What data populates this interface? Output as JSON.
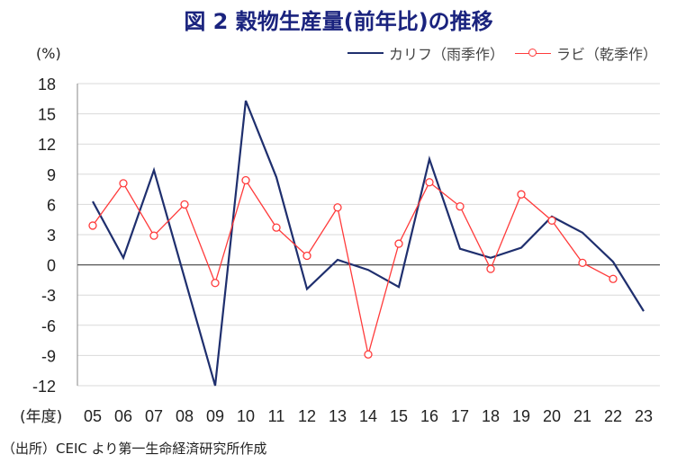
{
  "title": "図 2  穀物生産量(前年比)の推移",
  "source": "（出所）CEIC より第一生命経済研究所作成",
  "chart_data": {
    "type": "line",
    "ylabel": "(%)",
    "xlabel": "(年度)",
    "categories": [
      "05",
      "06",
      "07",
      "08",
      "09",
      "10",
      "11",
      "12",
      "13",
      "14",
      "15",
      "16",
      "17",
      "18",
      "19",
      "20",
      "21",
      "22",
      "23"
    ],
    "ylim": [
      -12,
      18
    ],
    "yticks": [
      18,
      15,
      12,
      9,
      6,
      3,
      0,
      -3,
      -6,
      -9,
      -12
    ],
    "grid": true,
    "legend_position": "top-right",
    "series": [
      {
        "name": "カリフ（雨季作）",
        "color": "#1f2f6e",
        "marker": "none",
        "values": [
          6.3,
          0.7,
          9.4,
          -1.3,
          -12.0,
          16.3,
          8.7,
          -2.4,
          0.5,
          -0.5,
          -2.2,
          10.5,
          1.6,
          0.7,
          1.7,
          4.8,
          3.2,
          0.3,
          -4.6
        ]
      },
      {
        "name": "ラビ（乾季作）",
        "color": "#ff3b3b",
        "marker": "open-circle",
        "values": [
          3.9,
          8.1,
          2.9,
          6.0,
          -1.8,
          8.4,
          3.7,
          0.9,
          5.7,
          -8.9,
          2.1,
          8.2,
          5.8,
          -0.4,
          7.0,
          4.4,
          0.2,
          -1.4,
          null
        ]
      }
    ]
  }
}
